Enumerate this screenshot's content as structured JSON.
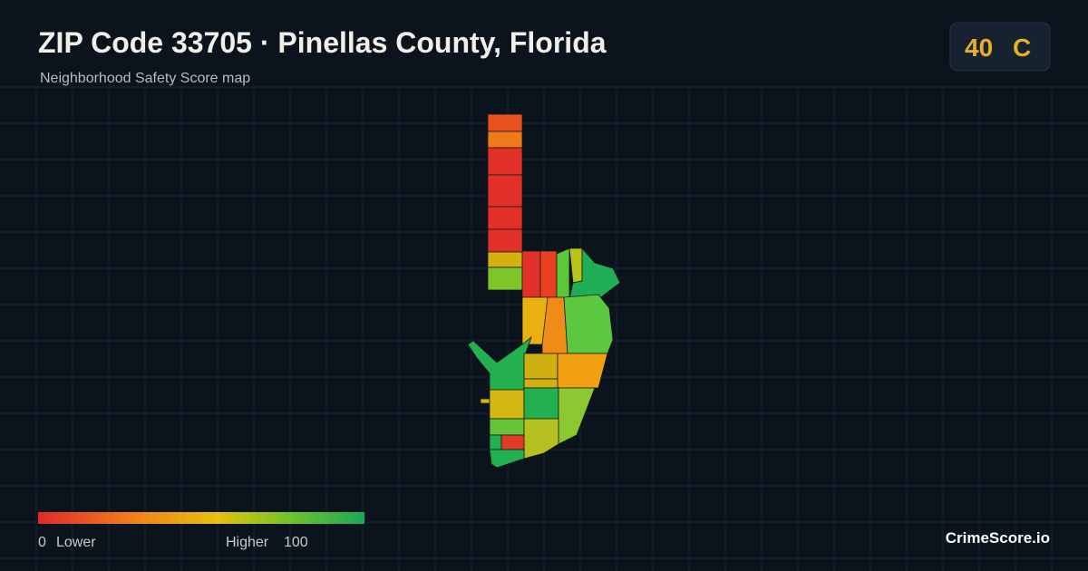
{
  "header": {
    "title": "ZIP Code 33705 · Pinellas County, Florida",
    "subtitle": "Neighborhood Safety Score map"
  },
  "badge": {
    "score": 40,
    "grade": "C"
  },
  "legend": {
    "min": 0,
    "min_label": "Lower",
    "max_label": "Higher",
    "max": 100
  },
  "brand": "CrimeScore.io"
}
